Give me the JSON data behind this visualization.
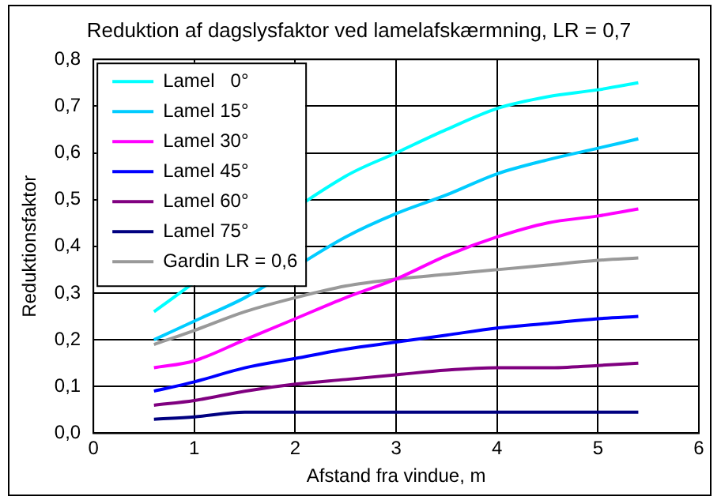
{
  "chart_data": {
    "type": "line",
    "title": "Reduktion af dagslysfaktor ved lamelafskærmning, LR = 0,7",
    "xlabel": "Afstand fra vindue, m",
    "ylabel": "Reduktionsfaktor",
    "x": [
      0.6,
      1,
      1.5,
      2,
      2.5,
      3,
      3.5,
      4,
      4.5,
      5,
      5.4
    ],
    "series": [
      {
        "name": "Lamel   0°",
        "color": "#00ffff",
        "values": [
          0.26,
          null,
          null,
          null,
          0.55,
          0.6,
          0.65,
          0.695,
          0.72,
          0.735,
          0.75
        ]
      },
      {
        "name": "Lamel 15°",
        "color": "#00ccff",
        "values": [
          0.2,
          0.24,
          0.29,
          null,
          0.42,
          0.47,
          0.51,
          0.555,
          0.585,
          0.61,
          0.63
        ]
      },
      {
        "name": "Lamel 30°",
        "color": "#ff00ff",
        "values": [
          0.14,
          0.155,
          0.2,
          0.245,
          0.29,
          0.33,
          0.38,
          0.42,
          0.45,
          0.465,
          0.48
        ]
      },
      {
        "name": "Lamel 45°",
        "color": "#0000ff",
        "values": [
          0.09,
          0.11,
          0.14,
          0.16,
          0.18,
          0.195,
          0.21,
          0.225,
          0.235,
          0.245,
          0.25
        ]
      },
      {
        "name": "Lamel 60°",
        "color": "#800080",
        "values": [
          0.06,
          0.07,
          0.09,
          0.105,
          0.115,
          0.125,
          0.135,
          0.14,
          0.14,
          0.145,
          0.15
        ]
      },
      {
        "name": "Lamel 75°",
        "color": "#000080",
        "values": [
          0.03,
          0.035,
          0.045,
          0.045,
          0.045,
          0.045,
          0.045,
          0.045,
          0.045,
          0.045,
          0.045
        ]
      },
      {
        "name": "Gardin LR = 0,6",
        "color": "#999999",
        "values": [
          0.19,
          0.22,
          0.26,
          0.29,
          0.315,
          0.33,
          0.34,
          0.35,
          0.36,
          0.37,
          0.375
        ]
      }
    ],
    "xlim": [
      0,
      6
    ],
    "xticks": [
      0,
      1,
      2,
      3,
      4,
      5,
      6
    ],
    "ylim": [
      0,
      0.8
    ],
    "yticks": [
      {
        "value": 0,
        "label": "0,0"
      },
      {
        "value": 0.1,
        "label": "0,1"
      },
      {
        "value": 0.2,
        "label": "0,2"
      },
      {
        "value": 0.3,
        "label": "0,3"
      },
      {
        "value": 0.4,
        "label": "0,4"
      },
      {
        "value": 0.5,
        "label": "0,5"
      },
      {
        "value": 0.6,
        "label": "0,6"
      },
      {
        "value": 0.7,
        "label": "0,7"
      },
      {
        "value": 0.8,
        "label": "0,8"
      }
    ],
    "grid": true,
    "legend": "top left",
    "marker": "none",
    "line_style": "solid"
  }
}
